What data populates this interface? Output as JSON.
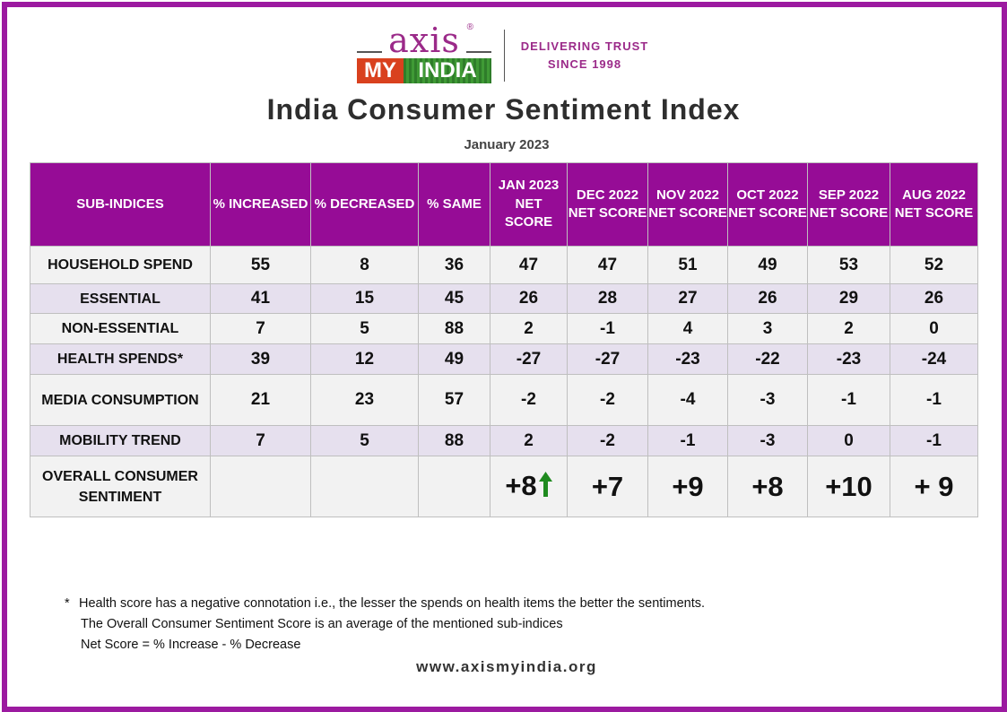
{
  "logo": {
    "axis": "axis",
    "reg": "®",
    "my": "MY",
    "india": "INDIA",
    "tagline_1": "DELIVERING TRUST",
    "tagline_2": "SINCE 1998"
  },
  "title": "India Consumer Sentiment Index",
  "subtitle": "January  2023",
  "table": {
    "headers": [
      "SUB-INDICES",
      "% INCREASED",
      "% DECREASED",
      "% SAME",
      "JAN 2023 NET SCORE",
      "DEC 2022 NET SCORE",
      "NOV 2022 NET SCORE",
      "OCT 2022 NET SCORE",
      "SEP 2022 NET SCORE",
      "AUG 2022 NET SCORE"
    ],
    "rows": [
      [
        "HOUSEHOLD SPEND",
        "55",
        "8",
        "36",
        "47",
        "47",
        "51",
        "49",
        "53",
        "52"
      ],
      [
        "ESSENTIAL",
        "41",
        "15",
        "45",
        "26",
        "28",
        "27",
        "26",
        "29",
        "26"
      ],
      [
        "NON-ESSENTIAL",
        "7",
        "5",
        "88",
        "2",
        "-1",
        "4",
        "3",
        "2",
        "0"
      ],
      [
        "HEALTH SPENDS*",
        "39",
        "12",
        "49",
        "-27",
        "-27",
        "-23",
        "-22",
        "-23",
        "-24"
      ],
      [
        "MEDIA CONSUMPTION",
        "21",
        "23",
        "57",
        "-2",
        "-2",
        "-4",
        "-3",
        "-1",
        "-1"
      ],
      [
        "MOBILITY TREND",
        "7",
        "5",
        "88",
        "2",
        "-2",
        "-1",
        "-3",
        "0",
        "-1"
      ],
      [
        "OVERALL CONSUMER SENTIMENT",
        "",
        "",
        "",
        "+8",
        "+7",
        "+9",
        "+8",
        "+10",
        "+ 9"
      ]
    ]
  },
  "colors": {
    "frame": "#9c1aa0",
    "header_bg": "#960c96",
    "row_light": "#f2f2f2",
    "row_lavender": "#e6e0ee",
    "arrow_up": "#1f8a1f"
  },
  "icons": {
    "trend": "up-arrow-icon"
  },
  "notes": {
    "star": "*",
    "line1": "Health score has a negative connotation i.e., the lesser the spends on health items the better the sentiments.",
    "line2": "The Overall Consumer Sentiment Score is an average of the mentioned sub-indices",
    "line3": "Net Score = % Increase - % Decrease"
  },
  "website": "www.axismyindia.org"
}
